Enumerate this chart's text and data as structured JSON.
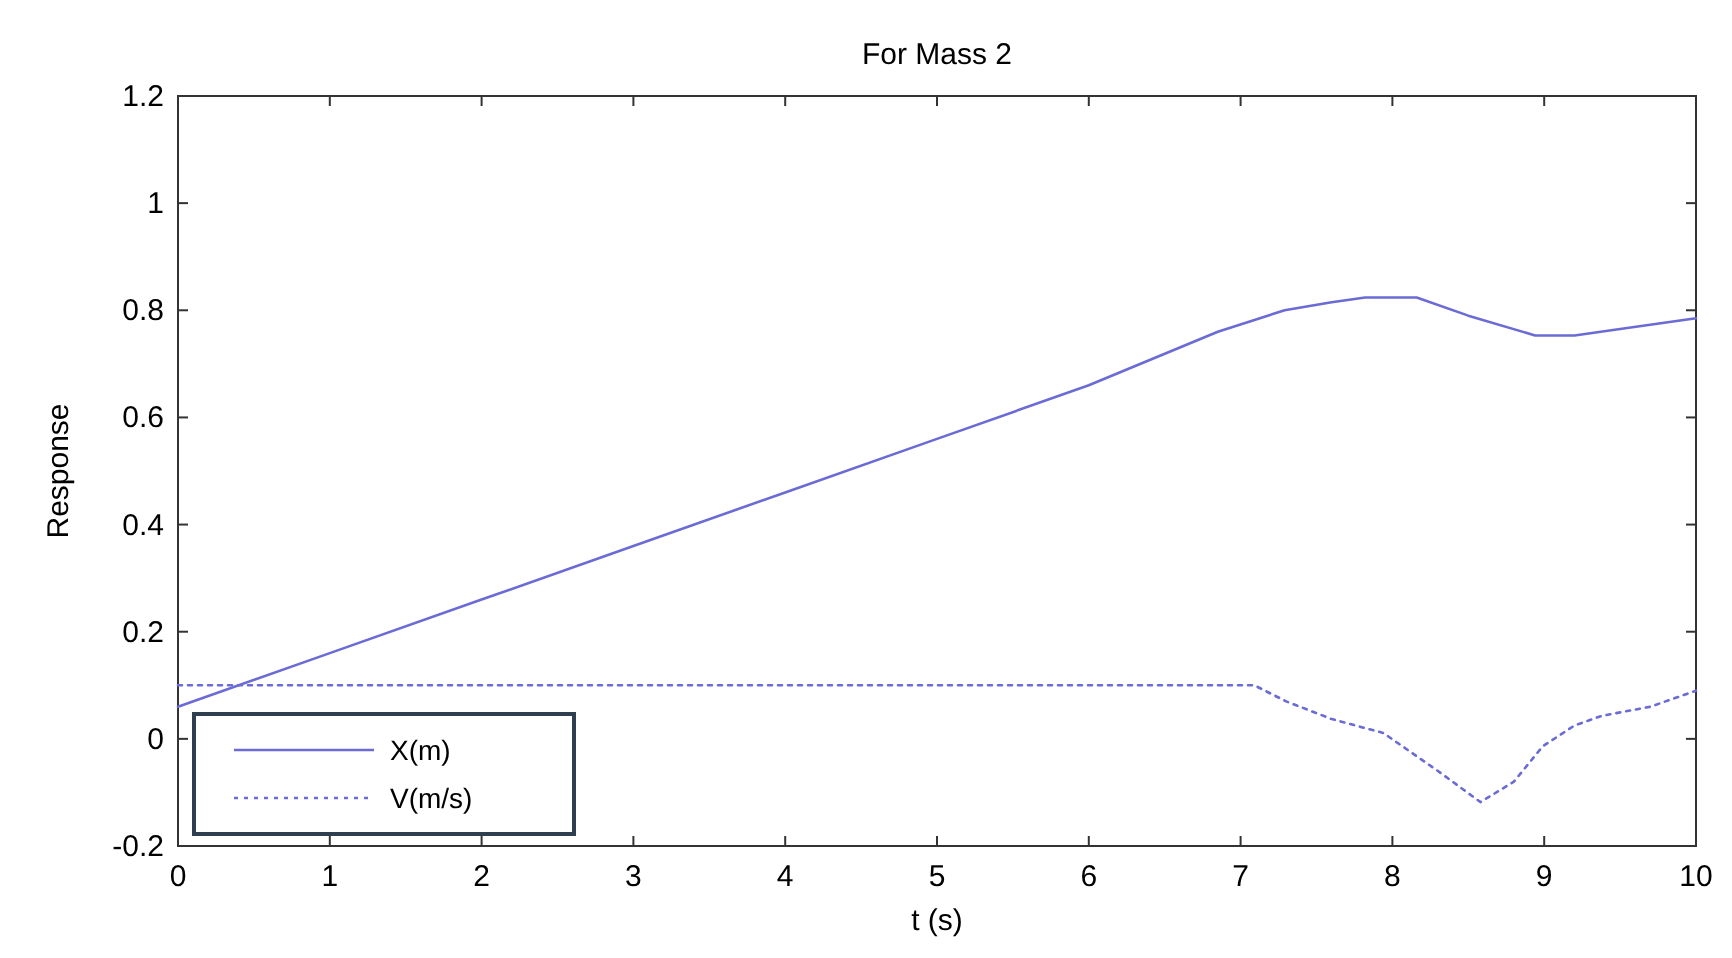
{
  "chart_data": {
    "type": "line",
    "title": "For Mass 2",
    "xlabel": "t (s)",
    "ylabel": "Response",
    "xlim": [
      0,
      10
    ],
    "xticks": [
      0,
      1,
      2,
      3,
      4,
      5,
      6,
      7,
      8,
      9,
      10
    ],
    "ylim": [
      -0.2,
      1.2
    ],
    "yticks": [
      -0.2,
      0,
      0.2,
      0.4,
      0.6,
      0.8,
      1,
      1.2
    ],
    "grid": false,
    "legend": "bottom left",
    "series": [
      {
        "name": "X(m)",
        "color": "#6b6bd6",
        "line_style": "solid",
        "x": [
          0,
          1,
          2,
          3,
          4,
          5,
          6,
          6.85,
          7.29,
          7.6,
          7.82,
          8.16,
          8.5,
          8.94,
          9.2,
          9.5,
          10
        ],
        "values": [
          0.06,
          0.16,
          0.26,
          0.36,
          0.46,
          0.56,
          0.66,
          0.76,
          0.8,
          0.815,
          0.824,
          0.824,
          0.79,
          0.753,
          0.753,
          0.765,
          0.785
        ]
      },
      {
        "name": "V(m/s)",
        "color": "#6b6bd6",
        "line_style": "dotted",
        "x": [
          0,
          7.09,
          7.3,
          7.6,
          7.94,
          8.3,
          8.58,
          8.8,
          8.99,
          9.2,
          9.38,
          9.7,
          10
        ],
        "values": [
          0.1,
          0.1,
          0.07,
          0.037,
          0.011,
          -0.06,
          -0.118,
          -0.08,
          -0.014,
          0.025,
          0.043,
          0.06,
          0.09
        ]
      }
    ]
  }
}
